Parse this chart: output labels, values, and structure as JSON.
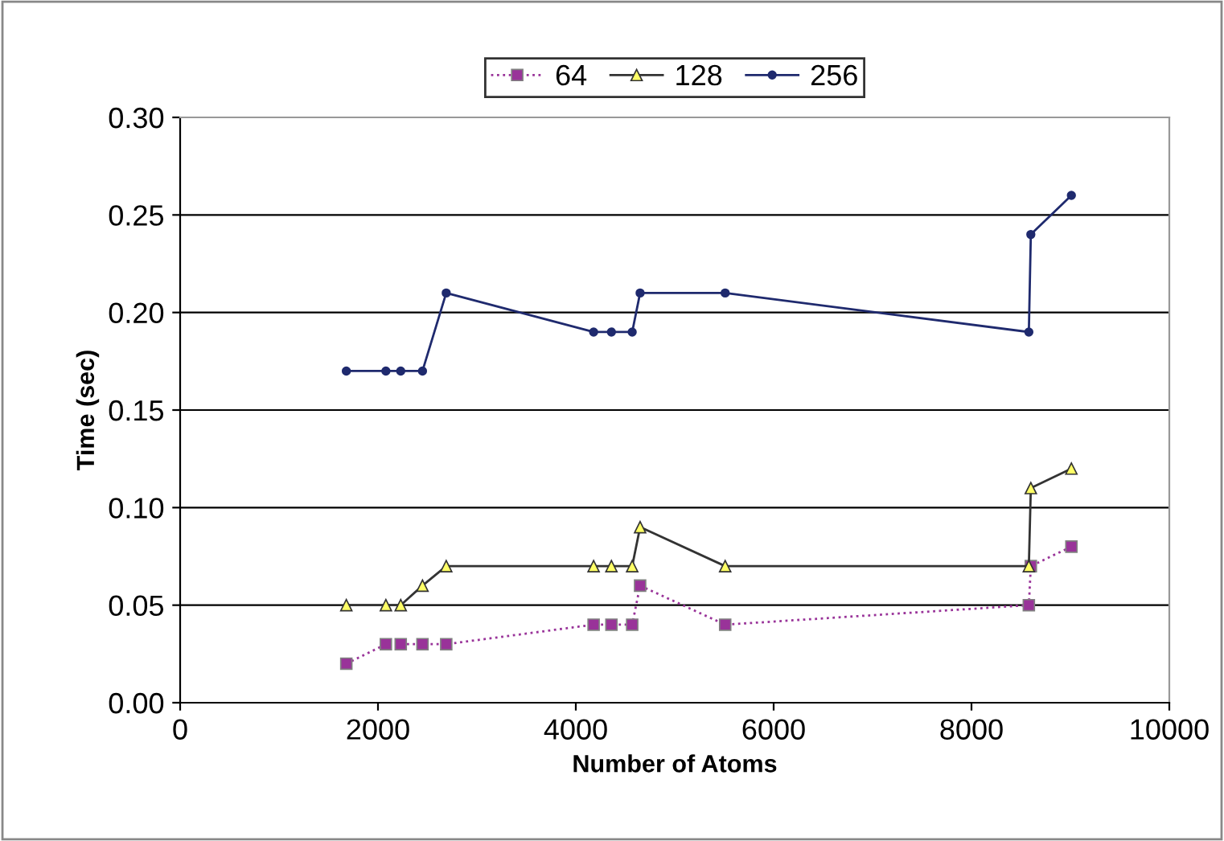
{
  "chart_data": {
    "type": "line",
    "xlabel": "Number of Atoms",
    "ylabel": "Time (sec)",
    "x": [
      1680,
      2080,
      2230,
      2450,
      2690,
      4180,
      4360,
      4570,
      4650,
      5510,
      8580,
      8600,
      9010
    ],
    "series": [
      {
        "name": "64",
        "color": "#993399",
        "marker": "square",
        "line_style": "dotted",
        "values": [
          0.02,
          0.03,
          0.03,
          0.03,
          0.03,
          0.04,
          0.04,
          0.04,
          0.06,
          0.04,
          0.05,
          0.07,
          0.08
        ]
      },
      {
        "name": "128",
        "color": "#333333",
        "marker": "triangle",
        "line_style": "solid",
        "values": [
          0.05,
          0.05,
          0.05,
          0.06,
          0.07,
          0.07,
          0.07,
          0.07,
          0.09,
          0.07,
          0.07,
          0.11,
          0.12
        ]
      },
      {
        "name": "256",
        "color": "#1f2a6e",
        "marker": "circle",
        "line_style": "solid",
        "values": [
          0.17,
          0.17,
          0.17,
          0.17,
          0.21,
          0.19,
          0.19,
          0.19,
          0.21,
          0.21,
          0.19,
          0.24,
          0.26
        ]
      }
    ],
    "xlim": [
      0,
      10000
    ],
    "xticks": [
      0,
      2000,
      4000,
      6000,
      8000,
      10000
    ],
    "ylim": [
      0,
      0.3
    ],
    "yticks": [
      {
        "value": 0,
        "label": "0.00"
      },
      {
        "value": 0.05,
        "label": "0.05"
      },
      {
        "value": 0.1,
        "label": "0.10"
      },
      {
        "value": 0.15,
        "label": "0.15"
      },
      {
        "value": 0.2,
        "label": "0.20"
      },
      {
        "value": 0.25,
        "label": "0.25"
      },
      {
        "value": 0.3,
        "label": "0.30"
      }
    ],
    "grid": "y",
    "legend": "top"
  }
}
